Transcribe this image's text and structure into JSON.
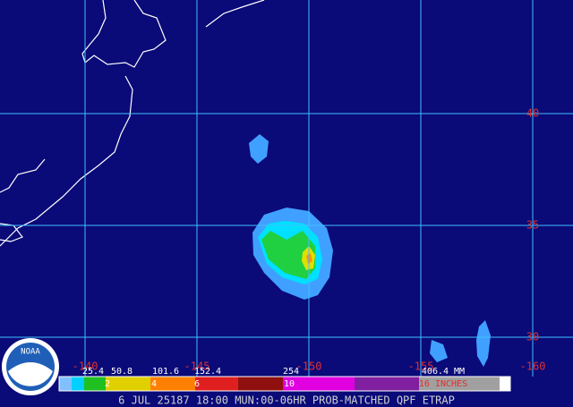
{
  "logo": "NOAA",
  "grid": {
    "lat_labels": [
      "40",
      "35",
      "30"
    ],
    "lon_labels": [
      "-140",
      "-145",
      "-150",
      "-155",
      "-160"
    ]
  },
  "legend": {
    "mm_labels": [
      "25.4",
      "50.8",
      "101.6",
      "152.4",
      "254",
      "406.4 MM"
    ],
    "inch_labels": [
      "2",
      "4",
      "6",
      "10",
      "16 INCHES"
    ]
  },
  "caption": "6 JUL 25187 18:00 MUN:00-06HR PROB-MATCHED QPF ETRAP"
}
